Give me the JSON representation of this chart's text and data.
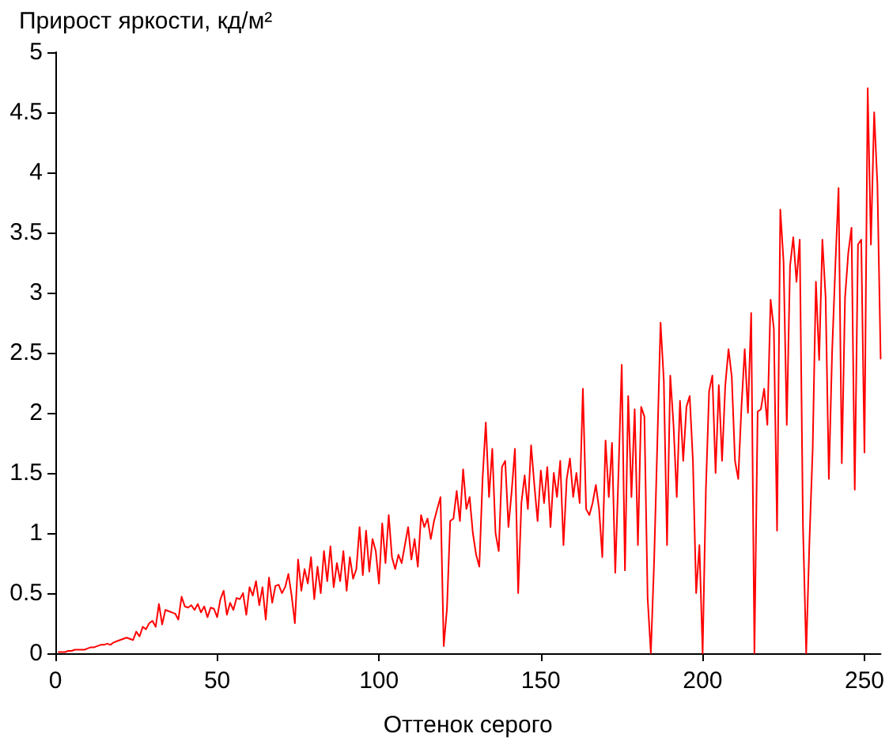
{
  "chart_data": {
    "type": "line",
    "xlabel": "Оттенок серого",
    "ylabel": "Прирост яркости, кд/м²",
    "color": "#ff0000",
    "xlim": [
      0,
      255
    ],
    "xticks": [
      0,
      50,
      100,
      150,
      200,
      250
    ],
    "ylim": [
      0,
      5
    ],
    "yticks": [
      0,
      0.5,
      1,
      1.5,
      2,
      2.5,
      3,
      3.5,
      4,
      4.5,
      5
    ],
    "x": [
      1,
      2,
      3,
      4,
      5,
      6,
      7,
      8,
      9,
      10,
      11,
      12,
      13,
      14,
      15,
      16,
      17,
      18,
      19,
      20,
      21,
      22,
      23,
      24,
      25,
      26,
      27,
      28,
      29,
      30,
      31,
      32,
      33,
      34,
      35,
      36,
      37,
      38,
      39,
      40,
      41,
      42,
      43,
      44,
      45,
      46,
      47,
      48,
      49,
      50,
      51,
      52,
      53,
      54,
      55,
      56,
      57,
      58,
      59,
      60,
      61,
      62,
      63,
      64,
      65,
      66,
      67,
      68,
      69,
      70,
      71,
      72,
      73,
      74,
      75,
      76,
      77,
      78,
      79,
      80,
      81,
      82,
      83,
      84,
      85,
      86,
      87,
      88,
      89,
      90,
      91,
      92,
      93,
      94,
      95,
      96,
      97,
      98,
      99,
      100,
      101,
      102,
      103,
      104,
      105,
      106,
      107,
      108,
      109,
      110,
      111,
      112,
      113,
      114,
      115,
      116,
      117,
      118,
      119,
      120,
      121,
      122,
      123,
      124,
      125,
      126,
      127,
      128,
      129,
      130,
      131,
      132,
      133,
      134,
      135,
      136,
      137,
      138,
      139,
      140,
      141,
      142,
      143,
      144,
      145,
      146,
      147,
      148,
      149,
      150,
      151,
      152,
      153,
      154,
      155,
      156,
      157,
      158,
      159,
      160,
      161,
      162,
      163,
      164,
      165,
      166,
      167,
      168,
      169,
      170,
      171,
      172,
      173,
      174,
      175,
      176,
      177,
      178,
      179,
      180,
      181,
      182,
      183,
      184,
      185,
      186,
      187,
      188,
      189,
      190,
      191,
      192,
      193,
      194,
      195,
      196,
      197,
      198,
      199,
      200,
      201,
      202,
      203,
      204,
      205,
      206,
      207,
      208,
      209,
      210,
      211,
      212,
      213,
      214,
      215,
      216,
      217,
      218,
      219,
      220,
      221,
      222,
      223,
      224,
      225,
      226,
      227,
      228,
      229,
      230,
      231,
      232,
      233,
      234,
      235,
      236,
      237,
      238,
      239,
      240,
      241,
      242,
      243,
      244,
      245,
      246,
      247,
      248,
      249,
      250,
      251,
      252,
      253,
      254,
      255
    ],
    "values": [
      0.01,
      0.01,
      0.01,
      0.02,
      0.02,
      0.03,
      0.03,
      0.03,
      0.03,
      0.04,
      0.05,
      0.05,
      0.06,
      0.07,
      0.07,
      0.08,
      0.07,
      0.09,
      0.1,
      0.11,
      0.12,
      0.13,
      0.12,
      0.11,
      0.18,
      0.14,
      0.22,
      0.2,
      0.25,
      0.27,
      0.22,
      0.41,
      0.24,
      0.36,
      0.35,
      0.34,
      0.33,
      0.28,
      0.47,
      0.39,
      0.38,
      0.4,
      0.36,
      0.41,
      0.34,
      0.39,
      0.3,
      0.38,
      0.37,
      0.3,
      0.45,
      0.52,
      0.32,
      0.42,
      0.36,
      0.46,
      0.45,
      0.5,
      0.32,
      0.55,
      0.48,
      0.6,
      0.4,
      0.55,
      0.28,
      0.63,
      0.42,
      0.56,
      0.57,
      0.5,
      0.55,
      0.66,
      0.48,
      0.25,
      0.78,
      0.52,
      0.7,
      0.58,
      0.8,
      0.45,
      0.72,
      0.5,
      0.85,
      0.6,
      0.89,
      0.55,
      0.75,
      0.6,
      0.85,
      0.52,
      0.8,
      0.62,
      0.7,
      1.05,
      0.65,
      1.02,
      0.68,
      0.95,
      0.85,
      0.58,
      1.08,
      0.75,
      1.15,
      0.8,
      0.7,
      0.82,
      0.75,
      0.9,
      1.05,
      0.78,
      0.95,
      0.72,
      1.15,
      1.05,
      1.12,
      0.95,
      1.1,
      1.2,
      1.3,
      0.06,
      0.37,
      1.1,
      1.12,
      1.35,
      1.1,
      1.53,
      1.2,
      1.3,
      1.0,
      0.82,
      0.72,
      1.45,
      1.92,
      1.3,
      1.7,
      1.0,
      0.85,
      1.55,
      1.6,
      1.05,
      1.35,
      1.7,
      0.5,
      1.25,
      1.48,
      1.2,
      1.73,
      1.4,
      1.1,
      1.52,
      1.25,
      1.55,
      1.05,
      1.5,
      1.3,
      1.6,
      0.9,
      1.45,
      1.62,
      1.3,
      1.5,
      1.25,
      2.2,
      1.2,
      1.15,
      1.25,
      1.4,
      1.2,
      0.8,
      1.77,
      1.3,
      1.75,
      0.67,
      1.5,
      2.4,
      0.69,
      2.14,
      1.3,
      2.03,
      0.9,
      2.05,
      1.97,
      0.46,
      0,
      0.76,
      1.75,
      2.75,
      2.27,
      0.9,
      2.31,
      1.9,
      1.3,
      2.1,
      1.6,
      2.05,
      2.14,
      1.6,
      0.5,
      0.9,
      0,
      1.36,
      2.18,
      2.31,
      1.5,
      2.23,
      1.6,
      2.23,
      2.53,
      2.3,
      1.6,
      1.45,
      2.05,
      2.53,
      2.0,
      2.83,
      0,
      2.01,
      2.03,
      2.2,
      1.9,
      2.94,
      2.7,
      1.02,
      3.69,
      3.26,
      1.9,
      3.22,
      3.46,
      3.09,
      3.44,
      1.06,
      0,
      0.93,
      1.7,
      3.09,
      2.44,
      3.44,
      2.96,
      1.45,
      2.5,
      3.22,
      3.87,
      1.58,
      2.96,
      3.33,
      3.54,
      1.36,
      3.4,
      3.44,
      1.67,
      4.7,
      3.4,
      4.5,
      3.9,
      2.45
    ]
  }
}
